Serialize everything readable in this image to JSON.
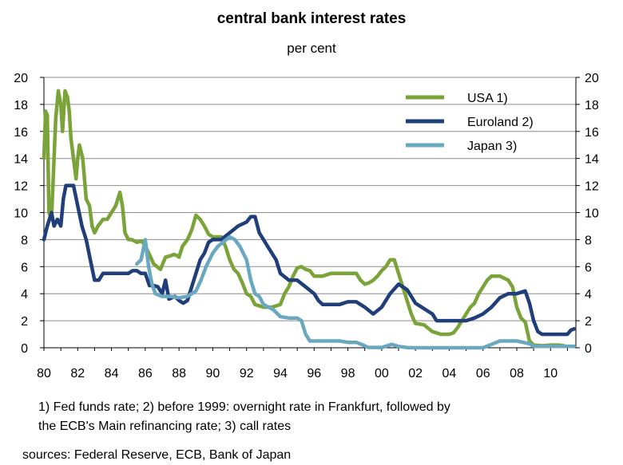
{
  "chart_data": {
    "type": "line",
    "title": "central bank interest rates",
    "subtitle": "per cent",
    "ylim": [
      0,
      20
    ],
    "y_ticks": [
      0,
      2,
      4,
      6,
      8,
      10,
      12,
      14,
      16,
      18,
      20
    ],
    "xlim": [
      1980,
      2011.5
    ],
    "x_ticks": [
      1980,
      1982,
      1984,
      1986,
      1988,
      1990,
      1992,
      1994,
      1996,
      1998,
      2000,
      2002,
      2004,
      2006,
      2008,
      2010
    ],
    "x_tick_labels": [
      "80",
      "82",
      "84",
      "86",
      "88",
      "90",
      "92",
      "94",
      "96",
      "98",
      "00",
      "02",
      "04",
      "06",
      "08",
      "10"
    ],
    "grid": "horizontal",
    "legend": "top-right",
    "series": [
      {
        "name": "USA 1)",
        "color": "#7aa33a",
        "x": [
          1980.0,
          1980.1,
          1980.2,
          1980.3,
          1980.45,
          1980.55,
          1980.7,
          1980.85,
          1981.0,
          1981.1,
          1981.25,
          1981.4,
          1981.5,
          1981.6,
          1981.75,
          1981.9,
          1982.0,
          1982.1,
          1982.2,
          1982.3,
          1982.5,
          1982.7,
          1982.85,
          1983.0,
          1983.2,
          1983.5,
          1983.75,
          1984.0,
          1984.25,
          1984.5,
          1984.65,
          1984.8,
          1985.0,
          1985.2,
          1985.5,
          1985.8,
          1986.0,
          1986.25,
          1986.5,
          1986.7,
          1986.9,
          1987.0,
          1987.2,
          1987.5,
          1987.7,
          1987.9,
          1988.0,
          1988.2,
          1988.5,
          1988.75,
          1989.0,
          1989.25,
          1989.5,
          1989.75,
          1990.0,
          1990.25,
          1990.5,
          1990.75,
          1991.0,
          1991.25,
          1991.5,
          1991.75,
          1992.0,
          1992.25,
          1992.5,
          1993.0,
          1993.5,
          1994.0,
          1994.25,
          1994.5,
          1994.75,
          1995.0,
          1995.25,
          1995.5,
          1995.75,
          1996.0,
          1996.5,
          1997.0,
          1997.5,
          1998.0,
          1998.5,
          1998.75,
          1999.0,
          1999.25,
          1999.5,
          1999.75,
          2000.0,
          2000.25,
          2000.5,
          2000.75,
          2001.0,
          2001.25,
          2001.5,
          2001.75,
          2002.0,
          2002.5,
          2003.0,
          2003.5,
          2004.0,
          2004.25,
          2004.5,
          2004.75,
          2005.0,
          2005.25,
          2005.5,
          2005.75,
          2006.0,
          2006.25,
          2006.5,
          2007.0,
          2007.5,
          2007.75,
          2008.0,
          2008.25,
          2008.5,
          2008.75,
          2009.0,
          2009.5,
          2010.0,
          2010.5,
          2011.0,
          2011.3
        ],
        "values": [
          14.0,
          17.5,
          17.2,
          10.0,
          9.5,
          12.5,
          17.0,
          19.0,
          18.0,
          16.0,
          19.0,
          18.5,
          17.5,
          15.5,
          14.0,
          12.5,
          14.0,
          15.0,
          14.5,
          14.0,
          11.0,
          10.5,
          9.0,
          8.5,
          9.0,
          9.5,
          9.5,
          10.0,
          10.5,
          11.5,
          10.5,
          8.5,
          8.0,
          8.0,
          7.8,
          7.9,
          7.5,
          6.9,
          6.2,
          6.0,
          5.8,
          6.1,
          6.7,
          6.8,
          6.9,
          6.8,
          6.7,
          7.5,
          8.0,
          8.7,
          9.8,
          9.5,
          9.0,
          8.4,
          8.2,
          8.2,
          8.2,
          7.5,
          6.5,
          5.8,
          5.5,
          4.8,
          4.0,
          3.8,
          3.2,
          3.0,
          3.0,
          3.2,
          4.0,
          4.5,
          5.3,
          5.9,
          6.0,
          5.8,
          5.7,
          5.3,
          5.3,
          5.5,
          5.5,
          5.5,
          5.5,
          5.0,
          4.7,
          4.8,
          5.0,
          5.3,
          5.7,
          6.0,
          6.5,
          6.5,
          5.5,
          4.5,
          3.5,
          2.5,
          1.8,
          1.7,
          1.2,
          1.0,
          1.0,
          1.1,
          1.5,
          2.0,
          2.5,
          3.0,
          3.3,
          4.0,
          4.5,
          5.0,
          5.3,
          5.3,
          5.0,
          4.5,
          3.0,
          2.2,
          1.9,
          0.5,
          0.2,
          0.15,
          0.2,
          0.2,
          0.1,
          0.1
        ]
      },
      {
        "name": "Euroland 2)",
        "color": "#1f3e7a",
        "x": [
          1980.0,
          1980.2,
          1980.45,
          1980.6,
          1980.8,
          1981.0,
          1981.15,
          1981.3,
          1981.5,
          1981.75,
          1982.0,
          1982.25,
          1982.5,
          1982.75,
          1983.0,
          1983.25,
          1983.5,
          1984.0,
          1984.5,
          1985.0,
          1985.25,
          1985.5,
          1985.75,
          1986.0,
          1986.25,
          1986.5,
          1986.75,
          1987.0,
          1987.2,
          1987.4,
          1987.75,
          1988.0,
          1988.25,
          1988.5,
          1988.75,
          1989.0,
          1989.25,
          1989.5,
          1989.75,
          1990.0,
          1990.5,
          1991.0,
          1991.5,
          1992.0,
          1992.25,
          1992.5,
          1992.75,
          1993.0,
          1993.25,
          1993.5,
          1993.75,
          1994.0,
          1994.5,
          1995.0,
          1995.5,
          1996.0,
          1996.25,
          1996.5,
          1997.0,
          1997.5,
          1998.0,
          1998.5,
          1998.75,
          1999.0,
          1999.5,
          2000.0,
          2000.5,
          2001.0,
          2001.5,
          2001.75,
          2002.0,
          2003.0,
          2003.25,
          2003.5,
          2004.0,
          2005.0,
          2005.5,
          2006.0,
          2006.5,
          2007.0,
          2007.5,
          2008.0,
          2008.5,
          2008.75,
          2009.0,
          2009.25,
          2009.5,
          2010.0,
          2011.0,
          2011.2,
          2011.4
        ],
        "values": [
          8.0,
          9.0,
          10.0,
          9.0,
          9.5,
          9.0,
          11.0,
          12.0,
          12.0,
          12.0,
          10.5,
          9.0,
          8.0,
          6.5,
          5.0,
          5.0,
          5.5,
          5.5,
          5.5,
          5.5,
          5.7,
          5.7,
          5.5,
          5.5,
          4.6,
          4.6,
          4.5,
          4.0,
          5.0,
          3.6,
          3.8,
          3.5,
          3.3,
          3.5,
          4.5,
          5.5,
          6.5,
          7.0,
          7.8,
          8.0,
          8.0,
          8.5,
          9.0,
          9.3,
          9.7,
          9.7,
          8.5,
          8.0,
          7.5,
          7.0,
          6.5,
          5.5,
          5.0,
          5.0,
          4.5,
          4.0,
          3.5,
          3.2,
          3.2,
          3.2,
          3.4,
          3.4,
          3.2,
          3.0,
          2.5,
          3.0,
          4.0,
          4.7,
          4.3,
          3.8,
          3.3,
          2.5,
          2.0,
          2.0,
          2.0,
          2.0,
          2.2,
          2.5,
          3.0,
          3.7,
          4.0,
          4.0,
          4.2,
          3.3,
          2.0,
          1.2,
          1.0,
          1.0,
          1.0,
          1.3,
          1.4
        ]
      },
      {
        "name": "Japan 3)",
        "color": "#6aa8c0",
        "x": [
          1985.5,
          1985.75,
          1986.0,
          1986.2,
          1986.4,
          1986.6,
          1987.0,
          1987.5,
          1988.0,
          1988.5,
          1989.0,
          1989.3,
          1989.6,
          1990.0,
          1990.3,
          1990.6,
          1991.0,
          1991.3,
          1991.6,
          1992.0,
          1992.25,
          1992.5,
          1992.75,
          1993.0,
          1993.3,
          1993.6,
          1994.0,
          1994.5,
          1995.0,
          1995.25,
          1995.5,
          1995.75,
          1996.0,
          1996.5,
          1997.0,
          1997.5,
          1998.0,
          1998.5,
          1998.9,
          1999.2,
          2000.0,
          2000.6,
          2001.0,
          2001.5,
          2002.0,
          2004.0,
          2006.0,
          2006.5,
          2007.0,
          2007.5,
          2008.0,
          2008.75,
          2009.0,
          2010.0,
          2011.0,
          2011.4
        ],
        "values": [
          6.2,
          6.5,
          8.0,
          6.0,
          4.7,
          4.0,
          3.8,
          3.8,
          3.7,
          3.8,
          4.2,
          5.0,
          6.0,
          7.0,
          7.5,
          7.8,
          8.2,
          8.0,
          7.5,
          6.5,
          5.0,
          4.0,
          3.8,
          3.2,
          3.0,
          2.8,
          2.3,
          2.2,
          2.2,
          2.0,
          1.0,
          0.5,
          0.5,
          0.5,
          0.5,
          0.5,
          0.4,
          0.4,
          0.2,
          0.03,
          0.02,
          0.25,
          0.1,
          0.02,
          0.0,
          0.0,
          0.0,
          0.25,
          0.5,
          0.5,
          0.5,
          0.3,
          0.1,
          0.1,
          0.1,
          0.1
        ]
      }
    ]
  },
  "footnote_line1": "1) Fed funds rate; 2) before 1999: overnight rate in Frankfurt, followed by",
  "footnote_line2": "the  ECB's Main refinancing  rate; 3) call rates",
  "sources": "sources: Federal Reserve, ECB, Bank of Japan"
}
